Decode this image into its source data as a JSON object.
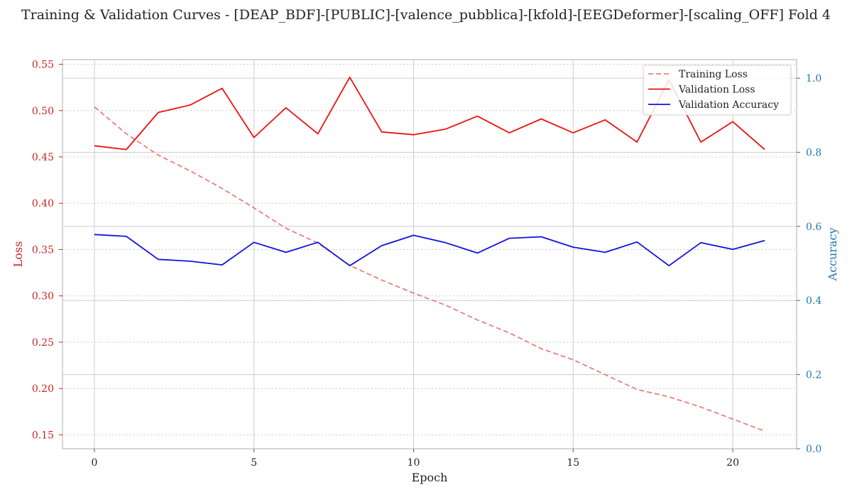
{
  "chart_data": {
    "type": "line",
    "title": "Training & Validation Curves - [DEAP_BDF]-[PUBLIC]-[valence_pubblica]-[kfold]-[EEGDeformer]-[scaling_OFF] Fold 4",
    "xlabel": "Epoch",
    "ylabel_left": "Loss",
    "ylabel_right": "Accuracy",
    "xlim": [
      -1.0,
      22.0
    ],
    "ylim_left": [
      0.135,
      0.555
    ],
    "ylim_right": [
      0.0,
      1.05
    ],
    "x_ticks": [
      0,
      5,
      10,
      15,
      20
    ],
    "y_left_ticks": [
      "0.15",
      "0.20",
      "0.25",
      "0.30",
      "0.35",
      "0.40",
      "0.45",
      "0.50",
      "0.55"
    ],
    "y_right_ticks": [
      "0.0",
      "0.2",
      "0.4",
      "0.6",
      "0.8",
      "1.0"
    ],
    "grid": true,
    "legend_position": "top-right",
    "x": [
      0,
      1,
      2,
      3,
      4,
      5,
      6,
      7,
      8,
      9,
      10,
      11,
      12,
      13,
      14,
      15,
      16,
      17,
      18,
      19,
      20,
      21
    ],
    "series": [
      {
        "name": "Training Loss",
        "axis": "left",
        "color": "#e8807a",
        "dashed": true,
        "values": [
          0.504,
          0.475,
          0.452,
          0.435,
          0.416,
          0.395,
          0.373,
          0.357,
          0.333,
          0.317,
          0.303,
          0.29,
          0.274,
          0.26,
          0.243,
          0.231,
          0.215,
          0.199,
          0.191,
          0.18,
          0.167,
          0.154
        ]
      },
      {
        "name": "Validation Loss",
        "axis": "left",
        "color": "#ee1111",
        "dashed": false,
        "values": [
          0.462,
          0.458,
          0.498,
          0.506,
          0.524,
          0.471,
          0.503,
          0.475,
          0.536,
          0.477,
          0.474,
          0.48,
          0.494,
          0.476,
          0.491,
          0.476,
          0.49,
          0.466,
          0.533,
          0.466,
          0.488,
          0.458
        ]
      },
      {
        "name": "Validation Accuracy",
        "axis": "right",
        "color": "#1111dd",
        "dashed": false,
        "values": [
          0.578,
          0.573,
          0.511,
          0.506,
          0.496,
          0.557,
          0.53,
          0.557,
          0.494,
          0.548,
          0.576,
          0.556,
          0.528,
          0.568,
          0.572,
          0.544,
          0.53,
          0.558,
          0.494,
          0.556,
          0.538,
          0.562
        ]
      }
    ],
    "colors": {
      "left_axis": "#cc2222",
      "right_axis": "#1f77b4",
      "grid": "#cccccc",
      "spine": "#bbbbbb"
    }
  }
}
